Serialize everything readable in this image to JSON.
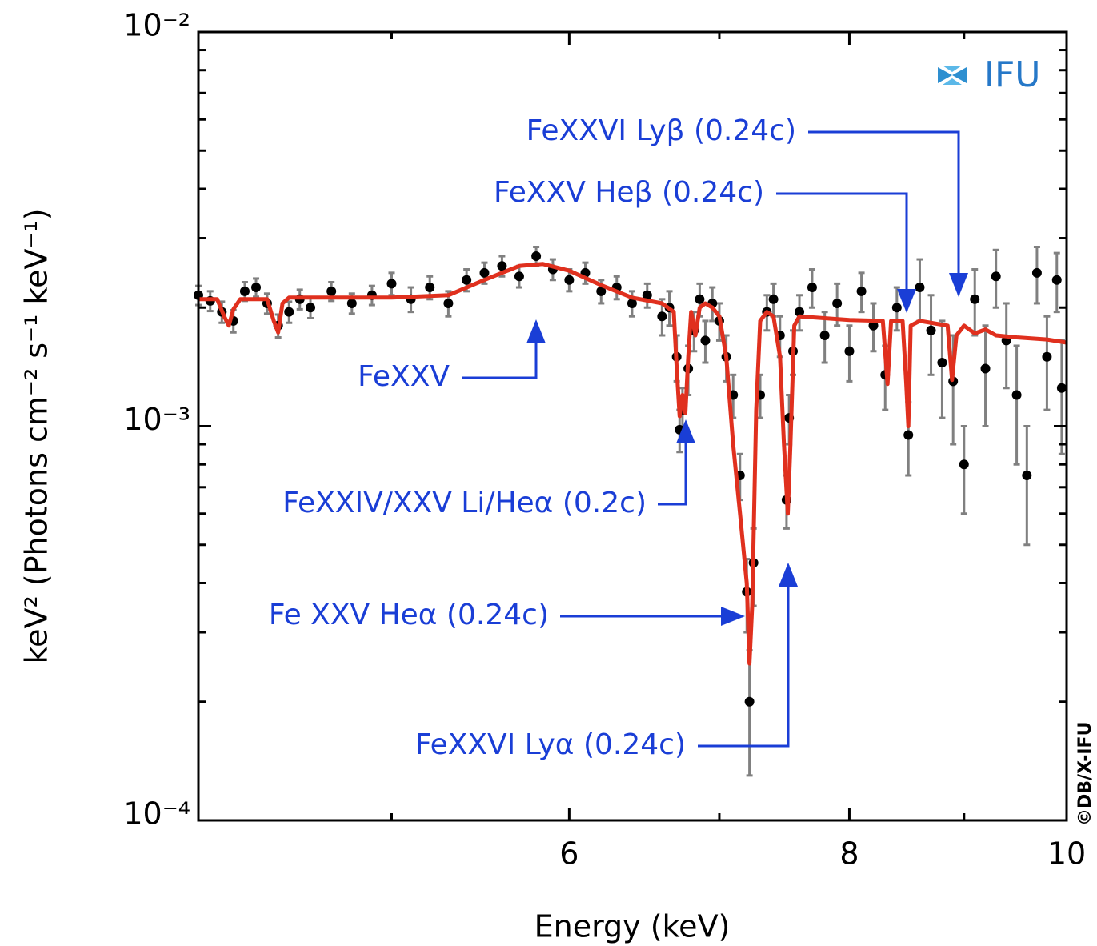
{
  "chart_data": {
    "type": "errorbar",
    "xlabel": "Energy (keV)",
    "ylabel": "keV² (Photons cm⁻² s⁻¹ keV⁻¹)",
    "xscale": "log",
    "yscale": "log",
    "xlim": [
      4.1,
      10
    ],
    "ylim": [
      0.0001,
      0.01
    ],
    "xticks": [
      6,
      8,
      10
    ],
    "xminorticks": [
      5,
      7,
      9
    ],
    "yticks": [
      {
        "value": 0.0001,
        "label": "10⁻⁴"
      },
      {
        "value": 0.001,
        "label": "10⁻³"
      },
      {
        "value": 0.01,
        "label": "10⁻²"
      }
    ],
    "yminorticks": [
      0.0002,
      0.0003,
      0.0004,
      0.0005,
      0.0006,
      0.0007,
      0.0008,
      0.0009,
      0.002,
      0.003,
      0.004,
      0.005,
      0.006,
      0.007,
      0.008,
      0.009
    ],
    "series": [
      {
        "kind": "points",
        "color": "#000000",
        "error_color": "#808080",
        "x": [
          4.1,
          4.15,
          4.2,
          4.25,
          4.3,
          4.35,
          4.4,
          4.45,
          4.5,
          4.55,
          4.6,
          4.7,
          4.8,
          4.9,
          5.0,
          5.1,
          5.2,
          5.3,
          5.4,
          5.5,
          5.6,
          5.7,
          5.8,
          5.9,
          6.0,
          6.1,
          6.2,
          6.3,
          6.4,
          6.5,
          6.6,
          6.65,
          6.7,
          6.72,
          6.74,
          6.78,
          6.82,
          6.86,
          6.9,
          6.95,
          7.0,
          7.05,
          7.1,
          7.15,
          7.2,
          7.22,
          7.25,
          7.3,
          7.35,
          7.4,
          7.45,
          7.5,
          7.52,
          7.55,
          7.6,
          7.7,
          7.8,
          7.9,
          8.0,
          8.1,
          8.2,
          8.3,
          8.4,
          8.5,
          8.6,
          8.7,
          8.8,
          8.9,
          9.0,
          9.1,
          9.2,
          9.3,
          9.4,
          9.5,
          9.6,
          9.7,
          9.8,
          9.9,
          9.95
        ],
        "values": [
          0.00215,
          0.00208,
          0.00195,
          0.00185,
          0.0022,
          0.00225,
          0.00205,
          0.0018,
          0.00195,
          0.0021,
          0.002,
          0.0022,
          0.00205,
          0.00215,
          0.0023,
          0.0021,
          0.00225,
          0.00205,
          0.00235,
          0.00245,
          0.00255,
          0.0024,
          0.0027,
          0.0025,
          0.00235,
          0.00245,
          0.0022,
          0.00225,
          0.00205,
          0.00215,
          0.0019,
          0.002,
          0.0015,
          0.00098,
          0.0011,
          0.0014,
          0.00175,
          0.0021,
          0.00165,
          0.00205,
          0.00185,
          0.0015,
          0.0012,
          0.00075,
          0.00038,
          0.0002,
          0.00045,
          0.0012,
          0.00195,
          0.0021,
          0.0017,
          0.00065,
          0.00105,
          0.00155,
          0.00195,
          0.00225,
          0.0017,
          0.00205,
          0.00155,
          0.0022,
          0.0018,
          0.00135,
          0.002,
          0.00095,
          0.00225,
          0.00175,
          0.00145,
          0.0013,
          0.0008,
          0.0021,
          0.0014,
          0.0024,
          0.00165,
          0.0012,
          0.00075,
          0.00245,
          0.0015,
          0.00235,
          0.00125
        ],
        "errors": [
          0.00012,
          0.00012,
          0.00012,
          0.00012,
          0.00012,
          0.00012,
          0.00012,
          0.00012,
          0.00012,
          0.00012,
          0.00012,
          0.00012,
          0.00012,
          0.00012,
          0.00015,
          0.00015,
          0.00015,
          0.00015,
          0.00015,
          0.00015,
          0.00015,
          0.00015,
          0.00015,
          0.00015,
          0.00015,
          0.00015,
          0.00015,
          0.00015,
          0.00015,
          0.00015,
          0.0002,
          0.0002,
          0.0002,
          0.00012,
          0.00015,
          0.0002,
          0.0002,
          0.0002,
          0.0002,
          0.0002,
          0.0002,
          0.0002,
          0.00015,
          0.0001,
          8e-05,
          7e-05,
          0.0001,
          0.00015,
          0.0002,
          0.0002,
          0.0002,
          0.0001,
          0.00015,
          0.0002,
          0.0002,
          0.00025,
          0.00025,
          0.00025,
          0.00025,
          0.00025,
          0.00025,
          0.00025,
          0.00025,
          0.0002,
          0.0004,
          0.0004,
          0.0004,
          0.0004,
          0.0002,
          0.0004,
          0.0004,
          0.0004,
          0.0004,
          0.0004,
          0.00025,
          0.0004,
          0.0004,
          0.0004,
          0.0004
        ]
      },
      {
        "kind": "line",
        "color": "#e0301e",
        "x": [
          4.1,
          4.18,
          4.21,
          4.23,
          4.25,
          4.28,
          4.4,
          4.43,
          4.45,
          4.47,
          4.5,
          5.0,
          5.3,
          5.5,
          5.7,
          5.84,
          6.0,
          6.2,
          6.4,
          6.6,
          6.68,
          6.7,
          6.72,
          6.74,
          6.76,
          6.78,
          6.8,
          6.83,
          6.86,
          6.9,
          6.95,
          7.0,
          7.05,
          7.1,
          7.15,
          7.2,
          7.22,
          7.24,
          7.27,
          7.3,
          7.35,
          7.4,
          7.45,
          7.48,
          7.51,
          7.53,
          7.56,
          7.6,
          8.0,
          8.28,
          8.32,
          8.35,
          8.45,
          8.48,
          8.5,
          8.52,
          8.6,
          8.85,
          8.89,
          8.93,
          9.0,
          9.1,
          9.2,
          9.3,
          9.5,
          9.8,
          10.0
        ],
        "values": [
          0.0021,
          0.0021,
          0.0019,
          0.0018,
          0.00198,
          0.0021,
          0.0021,
          0.00185,
          0.00173,
          0.00205,
          0.00212,
          0.00212,
          0.00215,
          0.00235,
          0.00255,
          0.00258,
          0.00248,
          0.00228,
          0.00212,
          0.00205,
          0.00195,
          0.0014,
          0.00106,
          0.0012,
          0.00108,
          0.0015,
          0.00195,
          0.0017,
          0.002,
          0.00205,
          0.002,
          0.0019,
          0.0015,
          0.0009,
          0.0006,
          0.0004,
          0.00025,
          0.00035,
          0.0011,
          0.00185,
          0.00195,
          0.0019,
          0.0015,
          0.0009,
          0.0006,
          0.0009,
          0.0018,
          0.0019,
          0.00186,
          0.00185,
          0.00128,
          0.00185,
          0.00185,
          0.0013,
          0.001,
          0.0018,
          0.00185,
          0.0018,
          0.00131,
          0.0017,
          0.0018,
          0.00172,
          0.00176,
          0.0017,
          0.00168,
          0.00166,
          0.00163
        ]
      }
    ],
    "annotations": [
      "FeXXVI Lyβ (0.24c)",
      "FeXXV Heβ (0.24c)",
      "FeXXV",
      "FeXXIV/XXV Li/Heα (0.2c)",
      "Fe XXV Heα (0.24c)",
      "FeXXVI Lyα (0.24c)"
    ],
    "annotation_color": "#1a3ed6",
    "logo": "IFU",
    "credit": "©DB/X-IFU"
  }
}
